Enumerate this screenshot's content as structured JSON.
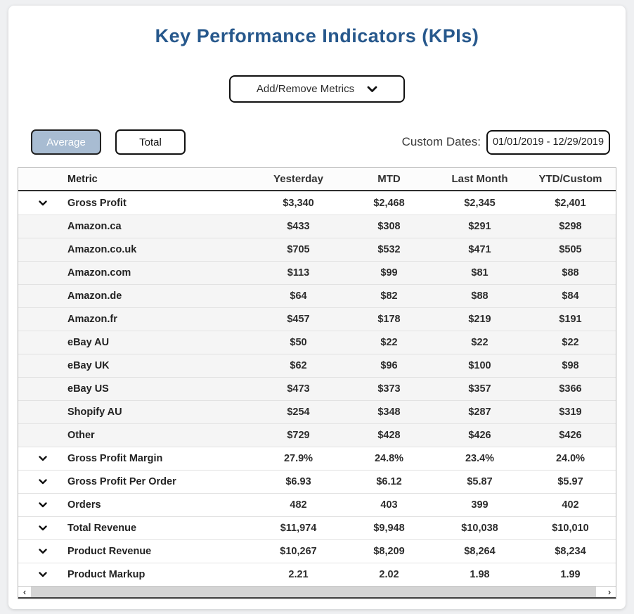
{
  "page": {
    "title": "Key Performance Indicators (KPIs)"
  },
  "metrics_dropdown": {
    "label": "Add/Remove Metrics"
  },
  "view_toggle": {
    "average_label": "Average",
    "total_label": "Total",
    "active": "Average",
    "active_bg_color": "#a8bcd2"
  },
  "custom_dates": {
    "label": "Custom Dates:",
    "value": "01/01/2019 - 12/29/2019"
  },
  "colors": {
    "title": "#27588c",
    "page_background": "#eff0f2",
    "sub_row_background": "#f5f5f5"
  },
  "table": {
    "columns": [
      "Metric",
      "Yesterday",
      "MTD",
      "Last Month",
      "YTD/Custom"
    ],
    "rows": [
      {
        "type": "main",
        "metric": "Gross Profit",
        "values": [
          "$3,340",
          "$2,468",
          "$2,345",
          "$2,401"
        ]
      },
      {
        "type": "sub",
        "metric": "Amazon.ca",
        "values": [
          "$433",
          "$308",
          "$291",
          "$298"
        ]
      },
      {
        "type": "sub",
        "metric": "Amazon.co.uk",
        "values": [
          "$705",
          "$532",
          "$471",
          "$505"
        ]
      },
      {
        "type": "sub",
        "metric": "Amazon.com",
        "values": [
          "$113",
          "$99",
          "$81",
          "$88"
        ]
      },
      {
        "type": "sub",
        "metric": "Amazon.de",
        "values": [
          "$64",
          "$82",
          "$88",
          "$84"
        ]
      },
      {
        "type": "sub",
        "metric": "Amazon.fr",
        "values": [
          "$457",
          "$178",
          "$219",
          "$191"
        ]
      },
      {
        "type": "sub",
        "metric": "eBay AU",
        "values": [
          "$50",
          "$22",
          "$22",
          "$22"
        ]
      },
      {
        "type": "sub",
        "metric": "eBay UK",
        "values": [
          "$62",
          "$96",
          "$100",
          "$98"
        ]
      },
      {
        "type": "sub",
        "metric": "eBay US",
        "values": [
          "$473",
          "$373",
          "$357",
          "$366"
        ]
      },
      {
        "type": "sub",
        "metric": "Shopify AU",
        "values": [
          "$254",
          "$348",
          "$287",
          "$319"
        ]
      },
      {
        "type": "sub",
        "metric": "Other",
        "values": [
          "$729",
          "$428",
          "$426",
          "$426"
        ]
      },
      {
        "type": "main",
        "metric": "Gross Profit Margin",
        "values": [
          "27.9%",
          "24.8%",
          "23.4%",
          "24.0%"
        ]
      },
      {
        "type": "main",
        "metric": "Gross Profit Per Order",
        "values": [
          "$6.93",
          "$6.12",
          "$5.87",
          "$5.97"
        ]
      },
      {
        "type": "main",
        "metric": "Orders",
        "values": [
          "482",
          "403",
          "399",
          "402"
        ]
      },
      {
        "type": "main",
        "metric": "Total Revenue",
        "values": [
          "$11,974",
          "$9,948",
          "$10,038",
          "$10,010"
        ]
      },
      {
        "type": "main",
        "metric": "Product Revenue",
        "values": [
          "$10,267",
          "$8,209",
          "$8,264",
          "$8,234"
        ]
      },
      {
        "type": "main",
        "metric": "Product Markup",
        "values": [
          "2.21",
          "2.02",
          "1.98",
          "1.99"
        ]
      }
    ]
  },
  "scrollbar": {
    "left_arrow": "‹",
    "right_arrow": "›"
  }
}
